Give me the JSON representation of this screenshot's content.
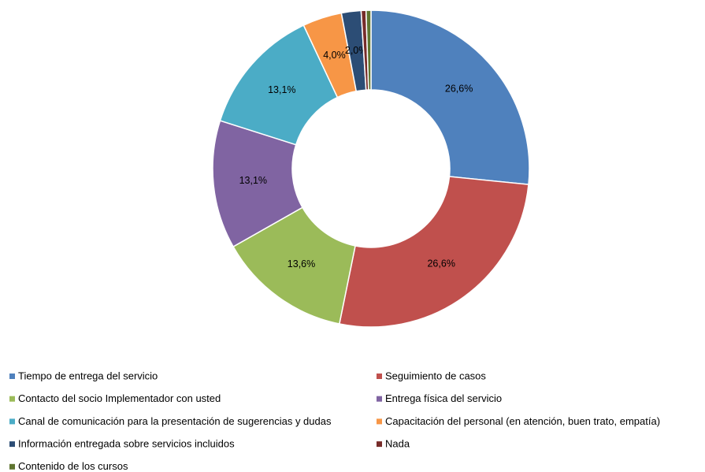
{
  "chart_data": {
    "type": "donut",
    "categories": [
      "Tiempo de entrega del servicio",
      "Seguimiento de casos",
      "Contacto del socio Implementador con usted",
      "Entrega física del servicio",
      "Canal de comunicación para la presentación de sugerencias y dudas",
      "Capacitación del personal (en atención, buen trato, empatía)",
      "Información entregada sobre servicios incluidos",
      "Nada",
      "Contenido de los cursos"
    ],
    "values": [
      26.6,
      26.6,
      13.6,
      13.1,
      13.1,
      4.0,
      2.0,
      0.5,
      0.5
    ],
    "value_labels": [
      "26,6%",
      "26,6%",
      "13,6%",
      "13,1%",
      "13,1%",
      "4,0%",
      "2,0%",
      null,
      null
    ],
    "colors": [
      "#4f81bd",
      "#c0504d",
      "#9bbb59",
      "#8064a2",
      "#4bacc6",
      "#f79646",
      "#2c4d75",
      "#772c2a",
      "#5f7530"
    ],
    "legend": "bottom"
  }
}
